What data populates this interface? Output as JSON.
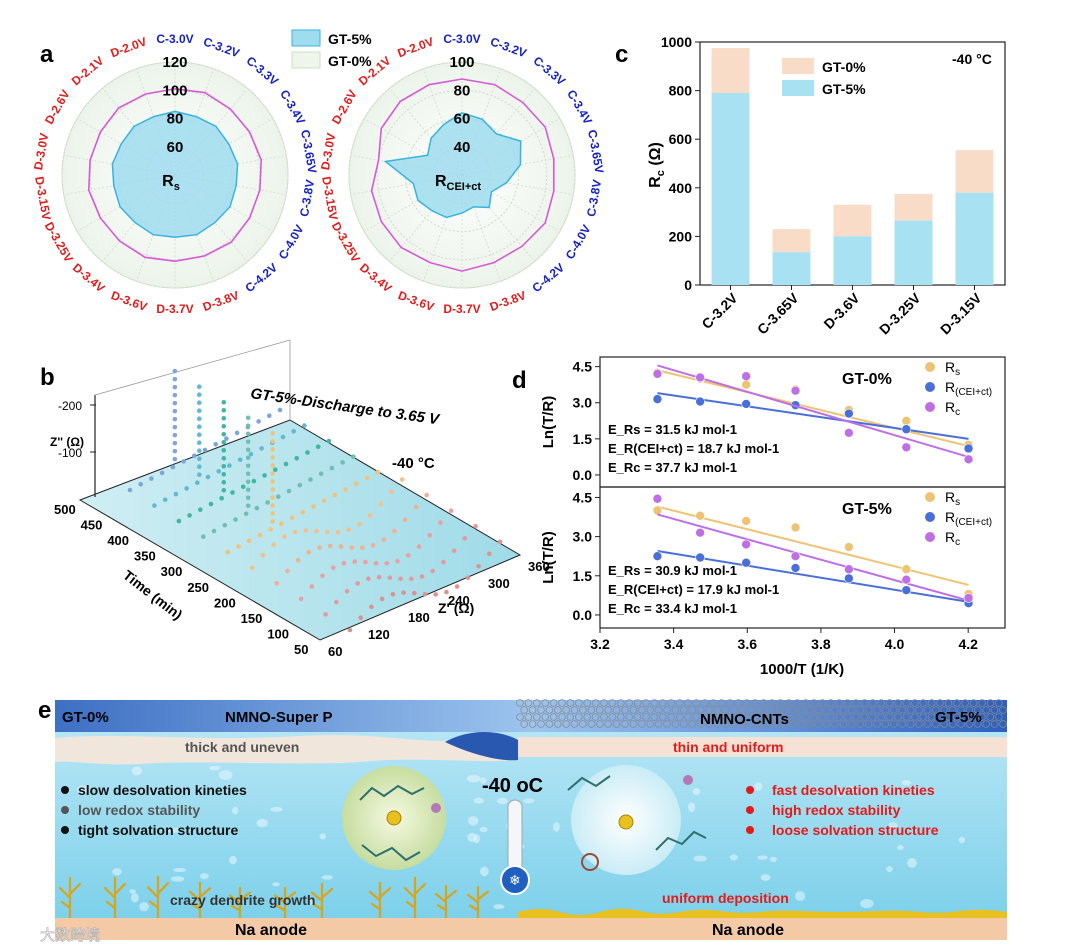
{
  "panels": {
    "a": "a",
    "b": "b",
    "c": "c",
    "d": "d",
    "e": "e"
  },
  "colors": {
    "gt5_fill": "#9fdcef",
    "gt5_line": "#39b3dc",
    "gt0_line": "#d65ad6",
    "bar_gt0": "#f8dcc8",
    "bar_gt5": "#a8e2f2",
    "rs": "#eec373",
    "rceict": "#4a6fd8",
    "rc": "#bf6fe6",
    "red": "#e31a1a",
    "blue": "#1420c8"
  },
  "panel_a": {
    "legend": [
      "GT-5%",
      "GT-0%"
    ],
    "spokes": [
      {
        "label": "C-3.0V",
        "color": "blue"
      },
      {
        "label": "C-3.2V",
        "color": "blue"
      },
      {
        "label": "C-3.3V",
        "color": "blue"
      },
      {
        "label": "C-3.4V",
        "color": "blue"
      },
      {
        "label": "C-3.65V",
        "color": "blue"
      },
      {
        "label": "C-3.8V",
        "color": "blue"
      },
      {
        "label": "C-4.0V",
        "color": "blue"
      },
      {
        "label": "C-4.2V",
        "color": "blue"
      },
      {
        "label": "D-3.8V",
        "color": "red"
      },
      {
        "label": "D-3.7V",
        "color": "red"
      },
      {
        "label": "D-3.6V",
        "color": "red"
      },
      {
        "label": "D-3.4V",
        "color": "red"
      },
      {
        "label": "D-3.25V",
        "color": "red"
      },
      {
        "label": "D-3.15V",
        "color": "red"
      },
      {
        "label": "D-3.0V",
        "color": "red"
      },
      {
        "label": "D-2.6V",
        "color": "red"
      },
      {
        "label": "D-2.1V",
        "color": "red"
      },
      {
        "label": "D-2.0V",
        "color": "red"
      }
    ],
    "radar_left": {
      "label": "R",
      "sub": "s",
      "ticks": [
        "120",
        "100",
        "80",
        "60"
      ],
      "range": [
        40,
        120
      ],
      "gt5": [
        85,
        84,
        85,
        84,
        85,
        84,
        85,
        84,
        85,
        84,
        85,
        84,
        85,
        84,
        85,
        84,
        85,
        84
      ],
      "gt0": [
        101,
        102,
        101,
        101,
        102,
        101,
        101,
        102,
        101,
        101,
        102,
        101,
        101,
        102,
        101,
        101,
        102,
        101
      ]
    },
    "radar_right": {
      "label": "R",
      "sub": "CEI+ct",
      "ticks": [
        "100",
        "80",
        "60",
        "40"
      ],
      "range": [
        20,
        100
      ],
      "gt5": [
        64,
        62,
        58,
        68,
        62,
        52,
        44,
        50,
        44,
        47,
        52,
        53,
        56,
        55,
        75,
        48,
        54,
        58
      ],
      "gt0": [
        88,
        88,
        87,
        88,
        86,
        86,
        88,
        86,
        86,
        88,
        86,
        87,
        86,
        85,
        80,
        86,
        88,
        88
      ]
    }
  },
  "panel_b": {
    "title": "GT-5%-Discharge to 3.65 V",
    "temp": "-40 °C",
    "zlabel": "Z'' (Ω)",
    "zticks": [
      "-200",
      "-100"
    ],
    "time_label": "Time (min)",
    "time_ticks": [
      "500",
      "450",
      "400",
      "350",
      "300",
      "250",
      "200",
      "150",
      "100",
      "50"
    ],
    "zp_label": "Z' (Ω)",
    "zp_ticks": [
      "60",
      "120",
      "180",
      "240",
      "300",
      "360"
    ]
  },
  "chart_data": [
    {
      "type": "bar",
      "panel": "c",
      "title": "-40 °C",
      "ylabel": "Rc (Ω)",
      "ylim": [
        0,
        1000
      ],
      "yticks": [
        "0",
        "200",
        "400",
        "600",
        "800",
        "1000"
      ],
      "categories": [
        "C-3.2V",
        "C-3.65V",
        "D-3.6V",
        "D-3.25V",
        "D-3.15V"
      ],
      "series": [
        {
          "name": "GT-0%",
          "values": [
            975,
            230,
            330,
            375,
            555
          ]
        },
        {
          "name": "GT-5%",
          "values": [
            790,
            135,
            200,
            265,
            380
          ]
        }
      ]
    },
    {
      "type": "scatter",
      "panel": "d-top",
      "title": "GT-0%",
      "ylabel": "Ln(T/R)",
      "ylim": [
        -0.5,
        4.9
      ],
      "yticks": [
        "0.0",
        "1.5",
        "3.0",
        "4.5"
      ],
      "x": [
        3.356,
        3.472,
        3.597,
        3.731,
        3.876,
        4.032,
        4.201
      ],
      "series": [
        {
          "name": "Rs",
          "values": [
            4.25,
            4.0,
            3.75,
            3.55,
            2.7,
            2.25,
            1.25
          ],
          "fit": [
            [
              3.356,
              4.35
            ],
            [
              4.201,
              1.2
            ]
          ]
        },
        {
          "name": "R(CEI+ct)",
          "values": [
            3.15,
            3.05,
            2.95,
            2.9,
            2.55,
            1.9,
            1.1
          ],
          "fit": [
            [
              3.356,
              3.4
            ],
            [
              4.201,
              1.5
            ]
          ]
        },
        {
          "name": "Rc",
          "values": [
            4.2,
            4.05,
            4.1,
            3.5,
            1.75,
            1.15,
            0.65
          ],
          "fit": [
            [
              3.356,
              4.55
            ],
            [
              4.201,
              0.75
            ]
          ]
        }
      ],
      "energies": [
        "E_Rs = 31.5 kJ mol-1",
        "E_R(CEI+ct) = 18.7 kJ mol-1",
        "E_Rc = 37.7 kJ mol-1"
      ]
    },
    {
      "type": "scatter",
      "panel": "d-bottom",
      "title": "GT-5%",
      "ylabel": "Ln(T/R)",
      "xlabel": "1000/T (1/K)",
      "ylim": [
        -0.5,
        4.9
      ],
      "yticks": [
        "0.0",
        "1.5",
        "3.0",
        "4.5"
      ],
      "xticks": [
        "3.2",
        "3.4",
        "3.6",
        "3.8",
        "4.0",
        "4.2"
      ],
      "xlim": [
        3.2,
        4.3
      ],
      "x": [
        3.356,
        3.472,
        3.597,
        3.731,
        3.876,
        4.032,
        4.201
      ],
      "series": [
        {
          "name": "Rs",
          "values": [
            4.0,
            3.8,
            3.6,
            3.35,
            2.6,
            1.75,
            0.8
          ],
          "fit": [
            [
              3.356,
              4.15
            ],
            [
              4.201,
              1.15
            ]
          ]
        },
        {
          "name": "R(CEI+ct)",
          "values": [
            2.25,
            2.2,
            2.0,
            1.8,
            1.4,
            0.95,
            0.45
          ],
          "fit": [
            [
              3.356,
              2.45
            ],
            [
              4.201,
              0.5
            ]
          ]
        },
        {
          "name": "Rc",
          "values": [
            4.45,
            3.15,
            2.7,
            2.25,
            1.75,
            1.35,
            0.65
          ],
          "fit": [
            [
              3.356,
              3.85
            ],
            [
              4.201,
              0.55
            ]
          ]
        }
      ],
      "energies": [
        "E_Rs = 30.9 kJ mol-1",
        "E_R(CEI+ct) = 17.9 kJ mol-1",
        "E_Rc = 33.4 kJ mol-1"
      ]
    }
  ],
  "panel_e": {
    "left_label": "GT-0%",
    "right_label": "GT-5%",
    "left_title": "NMNO-Super  P",
    "right_title": "NMNO-CNTs",
    "left_cei": "thick and uneven",
    "right_cei": "thin and uniform",
    "temp": "-40 oC",
    "left_points": [
      "slow desolvation kineties",
      "low redox stability",
      "tight solvation structure"
    ],
    "right_points": [
      "fast desolvation kineties",
      "high redox stability",
      "loose solvation structure"
    ],
    "left_bottom": "crazy dendrite growth",
    "right_bottom": "uniform deposition",
    "anode": "Na anode"
  },
  "watermark": "大数跨境"
}
